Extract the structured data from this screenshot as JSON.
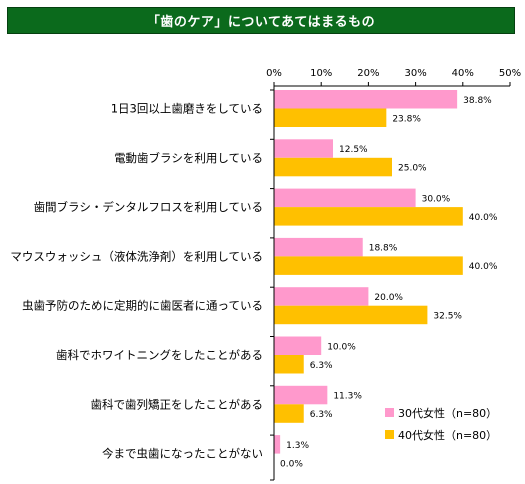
{
  "title": "「歯のケア」についてあてはまるもの",
  "chart_data": {
    "type": "bar",
    "orientation": "horizontal",
    "title": "「歯のケア」についてあてはまるもの",
    "categories": [
      "1日3回以上歯磨きをしている",
      "電動歯ブラシを利用している",
      "歯間ブラシ・デンタルフロスを利用している",
      "マウスウォッシュ（液体洗浄剤）を利用している",
      "虫歯予防のために定期的に歯医者に通っている",
      "歯科でホワイトニングをしたことがある",
      "歯科で歯列矯正をしたことがある",
      "今まで虫歯になったことがない"
    ],
    "series": [
      {
        "name": "30代女性（n=80）",
        "color": "#ff99cc",
        "values": [
          38.8,
          12.5,
          30.0,
          18.8,
          20.0,
          10.0,
          11.3,
          1.3
        ],
        "labels": [
          "38.8%",
          "12.5%",
          "30.0%",
          "18.8%",
          "20.0%",
          "10.0%",
          "11.3%",
          "1.3%"
        ]
      },
      {
        "name": "40代女性（n=80）",
        "color": "#ffc000",
        "values": [
          23.8,
          25.0,
          40.0,
          40.0,
          32.5,
          6.3,
          6.3,
          0.0
        ],
        "labels": [
          "23.8%",
          "25.0%",
          "40.0%",
          "40.0%",
          "32.5%",
          "6.3%",
          "6.3%",
          "0.0%"
        ]
      }
    ],
    "xlim": [
      0,
      50
    ],
    "ticks": [
      "0%",
      "10%",
      "20%",
      "30%",
      "40%",
      "50%"
    ],
    "tick_values": [
      0,
      10,
      20,
      30,
      40,
      50
    ],
    "grid": false,
    "legend": "bottom-right"
  }
}
